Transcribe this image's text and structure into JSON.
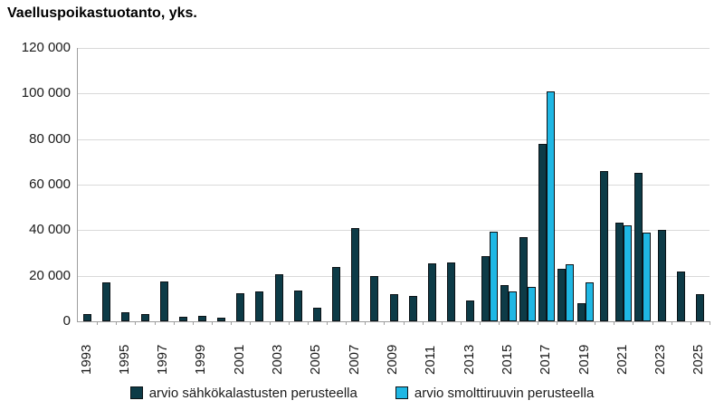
{
  "title": "Vaelluspoikastuotanto, yks.",
  "chart_data": {
    "type": "bar",
    "title": "Vaelluspoikastuotanto, yks.",
    "ylabel": "yks.",
    "xlabel": "",
    "ylim": [
      0,
      120000
    ],
    "ytick_step": 20000,
    "grid": true,
    "legend_position": "bottom",
    "categories": [
      1993,
      1994,
      1995,
      1996,
      1997,
      1998,
      1999,
      2000,
      2001,
      2002,
      2003,
      2004,
      2005,
      2006,
      2007,
      2008,
      2009,
      2010,
      2011,
      2012,
      2013,
      2014,
      2015,
      2016,
      2017,
      2018,
      2019,
      2020,
      2021,
      2022,
      2023,
      2024,
      2025
    ],
    "xtick_labels_shown": [
      "1993",
      "1995",
      "1997",
      "1999",
      "2001",
      "2003",
      "2005",
      "2007",
      "2009",
      "2011",
      "2013",
      "2015",
      "2017",
      "2019",
      "2021",
      "2023",
      "2025"
    ],
    "ytick_labels": [
      "0",
      "20 000",
      "40 000",
      "60 000",
      "80 000",
      "100 000",
      "120 000"
    ],
    "series": [
      {
        "name": "arvio sähkökalastusten perusteella",
        "color": "#0d3b47",
        "values": [
          3000,
          17000,
          4000,
          3000,
          17500,
          2000,
          2500,
          1500,
          12500,
          13000,
          20500,
          13500,
          6000,
          24000,
          41000,
          20000,
          12000,
          11000,
          25500,
          26000,
          9000,
          28500,
          16000,
          37000,
          78000,
          23000,
          8000,
          66000,
          43500,
          65000,
          40000,
          22000,
          12000
        ]
      },
      {
        "name": "arvio smolttiruuvin perusteella",
        "color": "#1fb7e4",
        "values": [
          null,
          null,
          null,
          null,
          null,
          null,
          null,
          null,
          null,
          null,
          null,
          null,
          null,
          null,
          null,
          null,
          null,
          null,
          null,
          null,
          null,
          39500,
          13000,
          15000,
          101000,
          25000,
          17000,
          null,
          42000,
          39000,
          null,
          null,
          null
        ]
      }
    ],
    "colors": {
      "grid": "#d9d9d9",
      "axis": "#9e9e9e",
      "bar_border": "#0b1216",
      "text": "#1a1a1a",
      "series_dark": "#0d3b47",
      "series_cyan": "#1fb7e4"
    }
  }
}
